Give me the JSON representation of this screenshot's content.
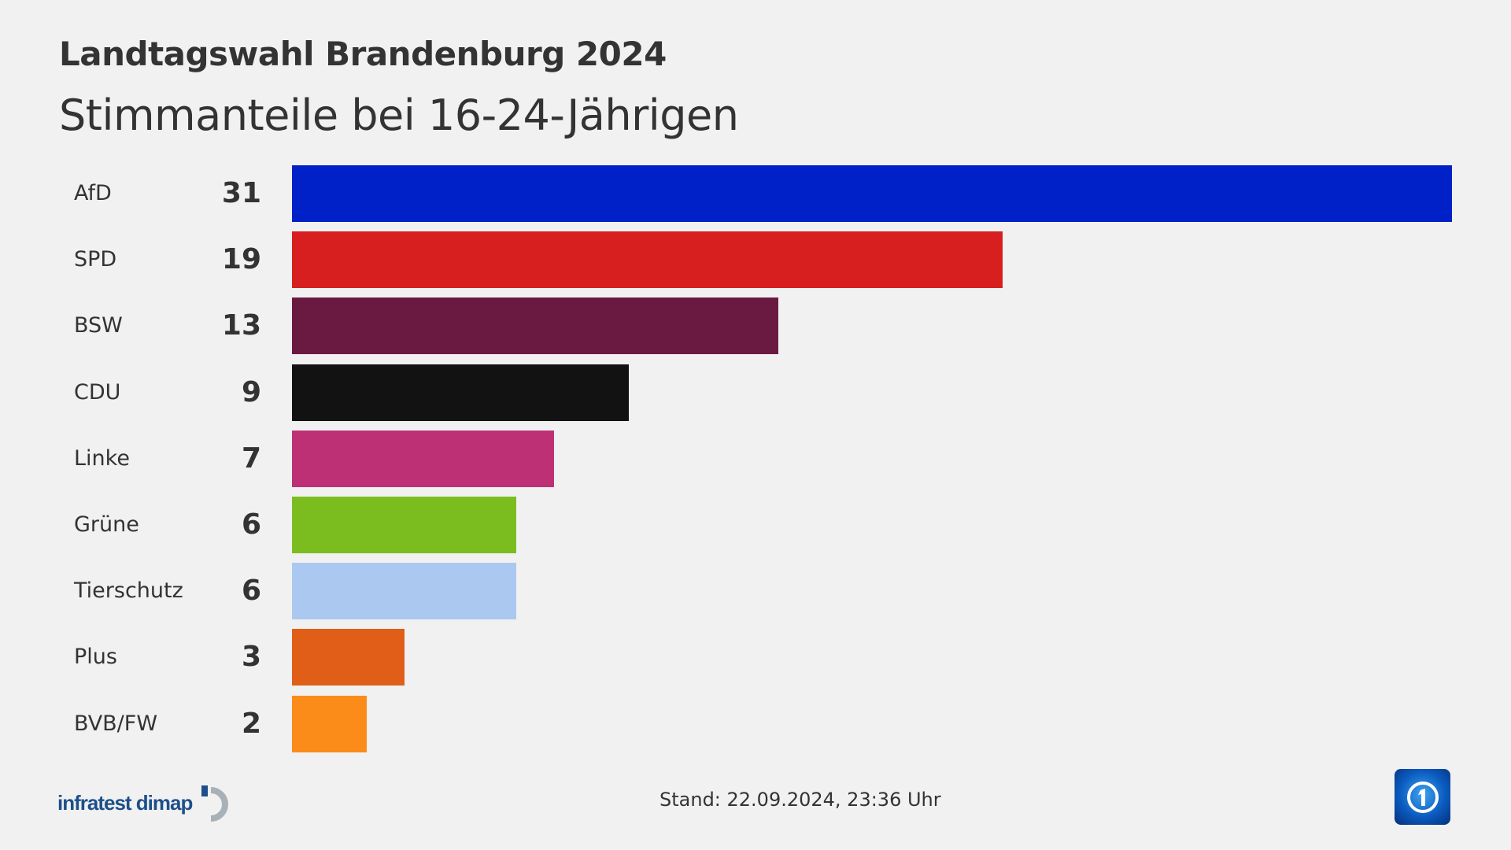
{
  "chart_data": {
    "type": "bar",
    "orientation": "horizontal",
    "title": "Landtagswahl Brandenburg 2024",
    "subtitle": "Stimmanteile bei 16-24-Jährigen",
    "categories": [
      "AfD",
      "SPD",
      "BSW",
      "CDU",
      "Linke",
      "Grüne",
      "Tierschutz",
      "Plus",
      "BVB/FW"
    ],
    "values": [
      31,
      19,
      13,
      9,
      7,
      6,
      6,
      3,
      2
    ],
    "colors": [
      "#0021c8",
      "#d71f1f",
      "#6a1a41",
      "#121212",
      "#be3075",
      "#7bbd1f",
      "#abc8f0",
      "#e05e17",
      "#fb8c1a"
    ],
    "grid": false,
    "xlim": [
      0,
      31
    ]
  },
  "footer": {
    "source": "infratest dimap",
    "stand": "Stand:  22.09.2024, 23:36 Uhr",
    "broadcaster_logo": "ARD Das Erste logo"
  }
}
